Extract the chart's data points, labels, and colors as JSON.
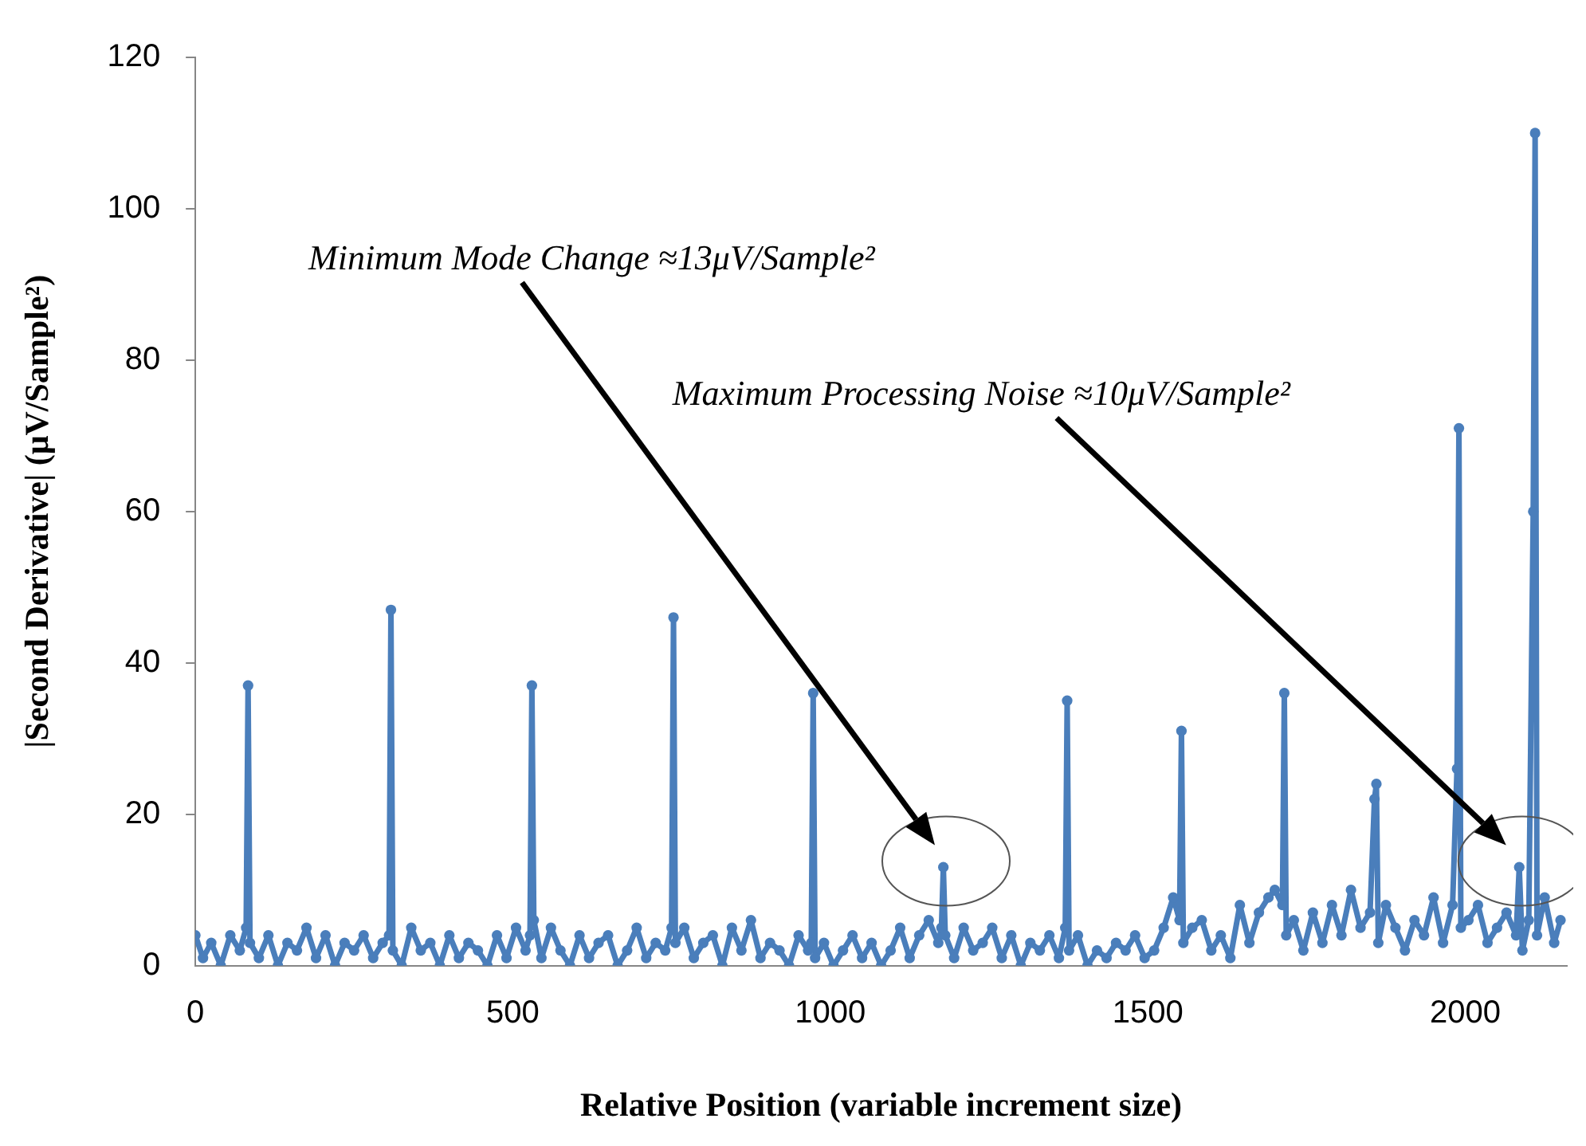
{
  "chart_data": {
    "type": "line",
    "xlabel": "Relative Position (variable increment size)",
    "ylabel": "|Second Derivative| (μV/Sample²)",
    "xlim": [
      0,
      2160
    ],
    "xticks": [
      0,
      500,
      1000,
      1500,
      2000
    ],
    "ylim": [
      0,
      120
    ],
    "yticks": [
      0,
      20,
      40,
      60,
      80,
      100,
      120
    ],
    "grid": false,
    "marker": "circle",
    "annotations": [
      "Minimum Mode Change ≈13μV/Sample²",
      "Maximum Processing Noise ≈10μV/Sample²"
    ],
    "series": [
      {
        "color": "#4a7ebb",
        "x": [
          0,
          12,
          25,
          40,
          55,
          70,
          80,
          83,
          86,
          100,
          115,
          130,
          145,
          160,
          175,
          190,
          205,
          220,
          235,
          250,
          265,
          280,
          295,
          305,
          308,
          311,
          325,
          340,
          355,
          370,
          385,
          400,
          415,
          430,
          445,
          460,
          475,
          490,
          505,
          520,
          527,
          530,
          533,
          545,
          560,
          575,
          590,
          605,
          620,
          635,
          650,
          665,
          680,
          695,
          710,
          725,
          740,
          750,
          753,
          756,
          770,
          785,
          800,
          815,
          830,
          845,
          860,
          875,
          890,
          905,
          920,
          935,
          950,
          965,
          970,
          973,
          976,
          990,
          1005,
          1020,
          1035,
          1050,
          1065,
          1080,
          1095,
          1110,
          1125,
          1140,
          1155,
          1170,
          1175,
          1178,
          1181,
          1195,
          1210,
          1225,
          1240,
          1255,
          1270,
          1285,
          1300,
          1315,
          1330,
          1345,
          1360,
          1370,
          1373,
          1376,
          1390,
          1405,
          1420,
          1435,
          1450,
          1465,
          1480,
          1495,
          1510,
          1525,
          1540,
          1550,
          1553,
          1556,
          1570,
          1585,
          1600,
          1615,
          1630,
          1645,
          1660,
          1675,
          1690,
          1700,
          1712,
          1715,
          1718,
          1730,
          1745,
          1760,
          1775,
          1790,
          1805,
          1820,
          1835,
          1850,
          1857,
          1860,
          1863,
          1875,
          1890,
          1905,
          1920,
          1935,
          1950,
          1965,
          1980,
          1987,
          1990,
          1993,
          2005,
          2020,
          2035,
          2050,
          2065,
          2080,
          2085,
          2090,
          2100,
          2107,
          2110,
          2113,
          2125,
          2140,
          2150
        ],
        "values": [
          4,
          1,
          3,
          0,
          4,
          2,
          5,
          37,
          3,
          1,
          4,
          0,
          3,
          2,
          5,
          1,
          4,
          0,
          3,
          2,
          4,
          1,
          3,
          4,
          47,
          2,
          0,
          5,
          2,
          3,
          0,
          4,
          1,
          3,
          2,
          0,
          4,
          1,
          5,
          2,
          4,
          37,
          6,
          1,
          5,
          2,
          0,
          4,
          1,
          3,
          4,
          0,
          2,
          5,
          1,
          3,
          2,
          5,
          46,
          3,
          5,
          1,
          3,
          4,
          0,
          5,
          2,
          6,
          1,
          3,
          2,
          0,
          4,
          2,
          3,
          36,
          1,
          3,
          0,
          2,
          4,
          1,
          3,
          0,
          2,
          5,
          1,
          4,
          6,
          3,
          5,
          13,
          4,
          1,
          5,
          2,
          3,
          5,
          1,
          4,
          0,
          3,
          2,
          4,
          1,
          5,
          35,
          2,
          4,
          0,
          2,
          1,
          3,
          2,
          4,
          1,
          2,
          5,
          9,
          6,
          31,
          3,
          5,
          6,
          2,
          4,
          1,
          8,
          3,
          7,
          9,
          10,
          8,
          36,
          4,
          6,
          2,
          7,
          3,
          8,
          4,
          10,
          5,
          7,
          22,
          24,
          3,
          8,
          5,
          2,
          6,
          4,
          9,
          3,
          8,
          26,
          71,
          5,
          6,
          8,
          3,
          5,
          7,
          4,
          13,
          2,
          6,
          60,
          110,
          4,
          9,
          3,
          6
        ]
      }
    ]
  }
}
